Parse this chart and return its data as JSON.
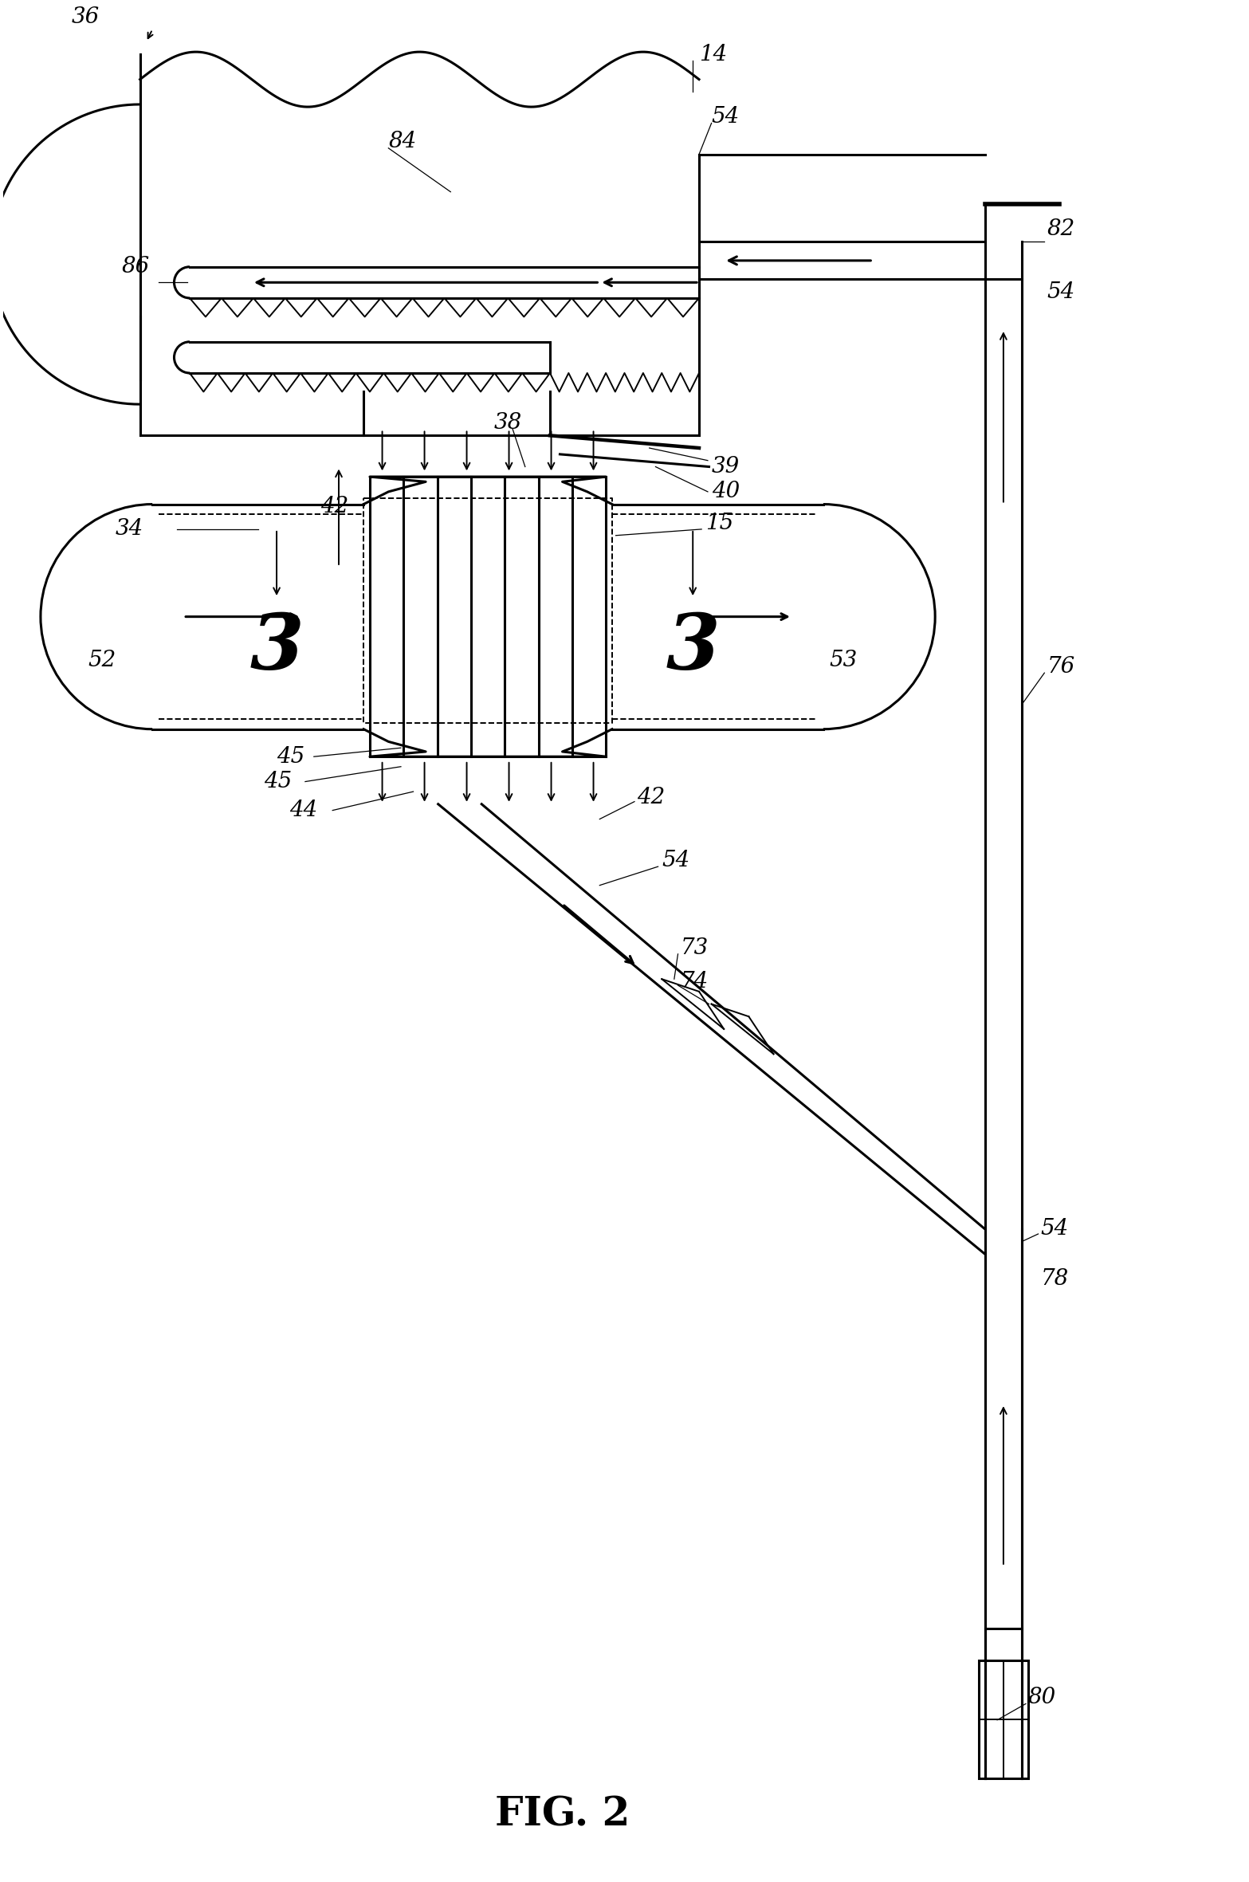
{
  "fig_label": "FIG. 2",
  "bg_color": "#ffffff",
  "line_color": "#000000",
  "figsize": [
    15.67,
    23.61
  ],
  "dpi": 100,
  "lw_main": 2.2,
  "lw_thin": 1.4,
  "lw_thick": 4.0,
  "label_fontsize": 20,
  "fig2_fontsize": 36,
  "arrow_scale": 14
}
